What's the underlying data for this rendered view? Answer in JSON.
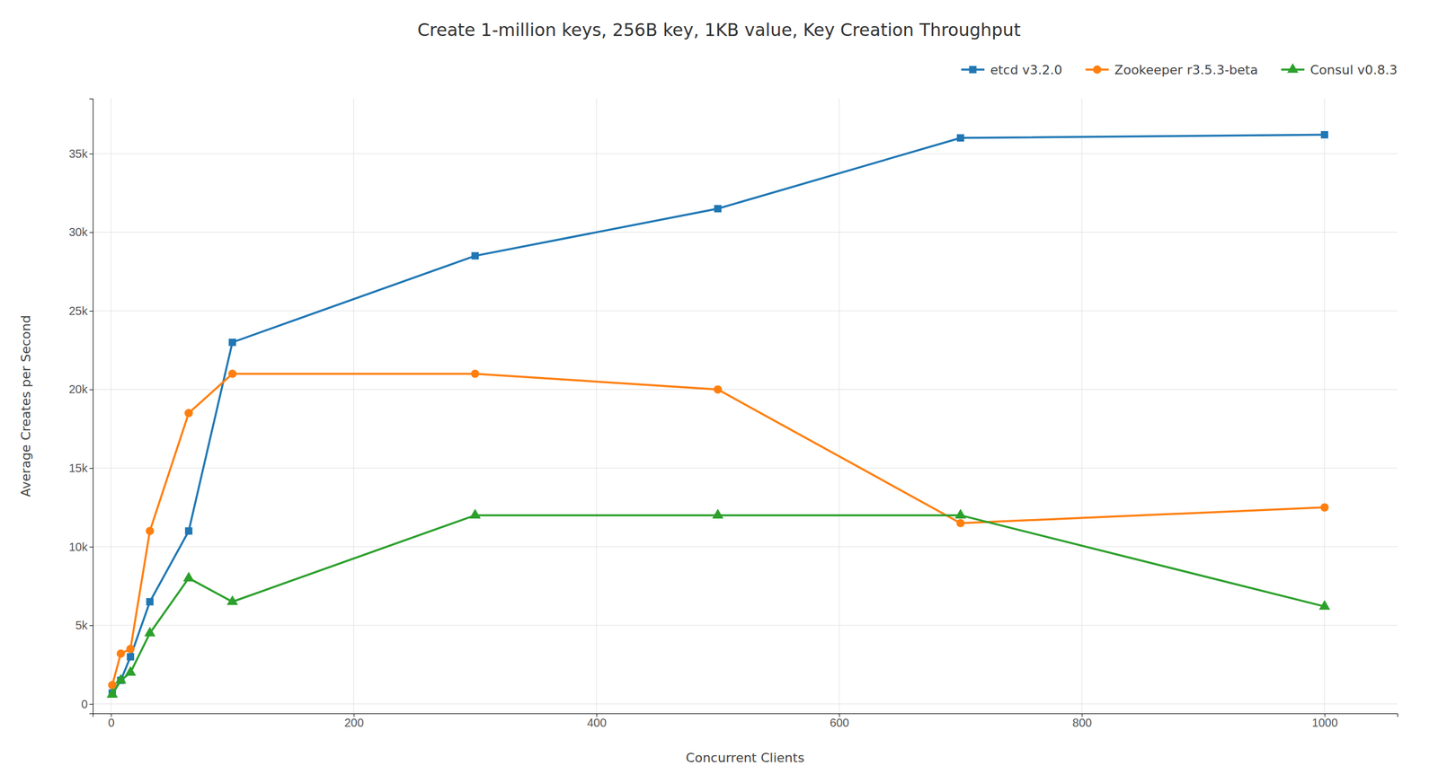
{
  "chart_data": {
    "type": "line",
    "title": "Create 1-million keys, 256B key, 1KB value, Key Creation Throughput",
    "xlabel": "Concurrent Clients",
    "ylabel": "Average Creates per Second",
    "x": [
      1,
      8,
      16,
      32,
      64,
      100,
      300,
      500,
      700,
      1000
    ],
    "series": [
      {
        "name": "etcd v3.2.0",
        "marker": "square",
        "values": [
          700,
          1500,
          3000,
          6500,
          11000,
          23000,
          28500,
          31500,
          36000,
          36200
        ]
      },
      {
        "name": "Zookeeper r3.5.3-beta",
        "marker": "circle",
        "values": [
          1200,
          3200,
          3500,
          11000,
          18500,
          21000,
          21000,
          20000,
          11500,
          12500
        ]
      },
      {
        "name": "Consul v0.8.3",
        "marker": "triangle",
        "values": [
          600,
          1500,
          2000,
          4500,
          8000,
          6500,
          12000,
          12000,
          12000,
          6200
        ]
      }
    ],
    "xlim": [
      -15,
      1060
    ],
    "xticks": [
      0,
      200,
      400,
      600,
      800,
      1000
    ],
    "ylim": [
      -600,
      38500
    ],
    "yticks": [
      0,
      {
        "value": 5000,
        "label": "5k"
      },
      {
        "value": 10000,
        "label": "10k"
      },
      {
        "value": 15000,
        "label": "15k"
      },
      {
        "value": 20000,
        "label": "20k"
      },
      {
        "value": 25000,
        "label": "25k"
      },
      {
        "value": 30000,
        "label": "30k"
      },
      {
        "value": 35000,
        "label": "35k"
      }
    ],
    "grid": true,
    "legend": "upper right"
  }
}
